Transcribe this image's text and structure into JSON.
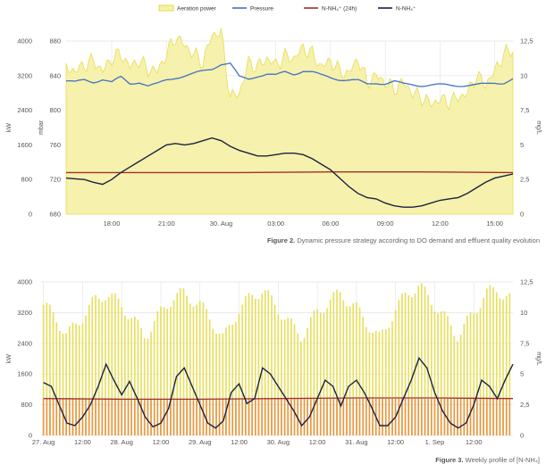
{
  "colors": {
    "aeration": "#e6dc4a",
    "aeration_fill": "#f6f1a8",
    "pressure": "#3f72c6",
    "nnh4_24h": "#a0312a",
    "nnh4": "#1a2340",
    "bar_orange": "#e88a3e",
    "grid": "#e3e3e3"
  },
  "legend": [
    {
      "key": "aeration",
      "label": "Aeration power",
      "icon": "filled-box"
    },
    {
      "key": "pressure",
      "label": "Pressure",
      "icon": "line"
    },
    {
      "key": "nnh4_24h",
      "label": "N-NH₄⁺ (24h)",
      "icon": "line"
    },
    {
      "key": "nnh4",
      "label": "N-NH₄⁺",
      "icon": "line"
    }
  ],
  "captions": {
    "fig2_bold": "Figure 2.",
    "fig2_text": " Dynamic pressure strategy according to DO demand and effluent quality evolution",
    "fig3_bold": "Figure 3.",
    "fig3_text": " Weekly profile of [N-NH₄]"
  },
  "chart_data": [
    {
      "type": "line",
      "title": "",
      "x_ticks": [
        "18:00",
        "21:00",
        "30. Aug",
        "03:00",
        "06:00",
        "09:00",
        "12:00",
        "15:00"
      ],
      "x_tick_hours": [
        18,
        21,
        24,
        27,
        30,
        33,
        36,
        39
      ],
      "x_range_hours": [
        15.5,
        40.0
      ],
      "axes": {
        "kw": {
          "label": "kW",
          "ticks": [
            0,
            800,
            1600,
            2400,
            3200,
            4000
          ],
          "range": [
            0,
            4000
          ]
        },
        "mbar": {
          "label": "mbar",
          "ticks": [
            680,
            720,
            760,
            800,
            840,
            880
          ],
          "range": [
            680,
            880
          ]
        },
        "mgl": {
          "label": "mg/L",
          "ticks": [
            0,
            2.5,
            5,
            7.5,
            10,
            12.5
          ],
          "range": [
            0,
            12.5
          ]
        }
      },
      "grid": true,
      "legend_position": "top",
      "series": [
        {
          "name": "Aeration power",
          "axis": "kw",
          "style": "area",
          "x": [
            15.5,
            16,
            16.5,
            17,
            17.5,
            18,
            18.5,
            19,
            19.5,
            20,
            20.5,
            21,
            21.5,
            22,
            22.5,
            23,
            23.5,
            24,
            24.5,
            25,
            25.5,
            26,
            26.5,
            27,
            27.5,
            28,
            28.5,
            29,
            29.5,
            30,
            30.5,
            31,
            31.5,
            32,
            32.5,
            33,
            33.5,
            34,
            34.5,
            35,
            35.5,
            36,
            36.5,
            37,
            37.5,
            38,
            38.5,
            39,
            39.5,
            40
          ],
          "values": [
            3400,
            3300,
            3450,
            3550,
            3300,
            3600,
            3700,
            3400,
            3550,
            3350,
            3300,
            3700,
            4100,
            3900,
            3700,
            3500,
            4150,
            4200,
            2700,
            2800,
            3500,
            3400,
            3600,
            3450,
            3650,
            3600,
            3850,
            3700,
            3400,
            3550,
            3300,
            3250,
            3600,
            3050,
            3200,
            3050,
            2900,
            3050,
            2800,
            2700,
            2550,
            2650,
            2600,
            2700,
            2800,
            3200,
            3000,
            3300,
            3700,
            3800
          ]
        },
        {
          "name": "Pressure",
          "axis": "mbar",
          "style": "line",
          "x": [
            15.5,
            16,
            16.5,
            17,
            17.5,
            18,
            18.5,
            19,
            19.5,
            20,
            20.5,
            21,
            21.5,
            22,
            22.5,
            23,
            23.5,
            24,
            24.5,
            25,
            25.5,
            26,
            26.5,
            27,
            27.5,
            28,
            28.5,
            29,
            29.5,
            30,
            30.5,
            31,
            31.5,
            32,
            32.5,
            33,
            33.5,
            34,
            34.5,
            35,
            35.5,
            36,
            36.5,
            37,
            37.5,
            38,
            38.5,
            39,
            39.5,
            40
          ],
          "values": [
            834,
            832,
            835,
            833,
            836,
            832,
            838,
            831,
            833,
            828,
            830,
            835,
            838,
            840,
            842,
            845,
            848,
            854,
            854,
            838,
            836,
            840,
            842,
            840,
            844,
            842,
            846,
            844,
            840,
            838,
            836,
            835,
            834,
            830,
            832,
            831,
            833,
            830,
            830,
            829,
            829,
            829,
            829,
            829,
            829,
            829,
            830,
            832,
            832,
            836
          ]
        },
        {
          "name": "N-NH₄⁺ (24h)",
          "axis": "mgl",
          "style": "line",
          "x": [
            15.5,
            20,
            25,
            30,
            35,
            40
          ],
          "values": [
            3.0,
            3.0,
            3.0,
            3.05,
            3.05,
            3.0
          ]
        },
        {
          "name": "N-NH₄⁺",
          "axis": "mgl",
          "style": "line",
          "x": [
            15.5,
            16,
            16.5,
            17,
            17.5,
            18,
            18.5,
            19,
            19.5,
            20,
            20.5,
            21,
            21.5,
            22,
            22.5,
            23,
            23.5,
            24,
            24.5,
            25,
            25.5,
            26,
            26.5,
            27,
            27.5,
            28,
            28.5,
            29,
            29.5,
            30,
            30.5,
            31,
            31.5,
            32,
            32.5,
            33,
            33.5,
            34,
            34.5,
            35,
            35.5,
            36,
            36.5,
            37,
            37.5,
            38,
            38.5,
            39,
            39.5,
            40
          ],
          "values": [
            2.6,
            2.55,
            2.5,
            2.3,
            2.15,
            2.5,
            3.0,
            3.4,
            3.8,
            4.2,
            4.6,
            5.0,
            5.1,
            5.0,
            5.1,
            5.3,
            5.5,
            5.3,
            4.9,
            4.6,
            4.4,
            4.2,
            4.2,
            4.3,
            4.4,
            4.4,
            4.3,
            4.0,
            3.6,
            3.2,
            2.6,
            2.0,
            1.5,
            1.2,
            1.1,
            0.8,
            0.6,
            0.5,
            0.5,
            0.6,
            0.8,
            1.0,
            1.1,
            1.2,
            1.5,
            1.9,
            2.3,
            2.6,
            2.75,
            2.9
          ]
        }
      ]
    },
    {
      "type": "bar",
      "title": "",
      "x_ticks": [
        "27. Aug",
        "12:00",
        "28. Aug",
        "12:00",
        "29. Aug",
        "12:00",
        "30. Aug",
        "12:00",
        "31. Aug",
        "12:00",
        "1. Sep",
        "12:00"
      ],
      "x_tick_days": [
        0,
        0.5,
        1,
        1.5,
        2,
        2.5,
        3,
        3.5,
        4,
        4.5,
        5,
        5.5
      ],
      "x_range_days": [
        -0.03,
        6.0
      ],
      "axes": {
        "kw": {
          "label": "kW",
          "ticks": [
            0,
            800,
            1600,
            2400,
            3200,
            4000
          ],
          "range": [
            0,
            4000
          ]
        },
        "mgl": {
          "label": "mg/L",
          "ticks": [
            0,
            2.5,
            5,
            7.5,
            10,
            12.5
          ],
          "range": [
            0,
            12.5
          ]
        }
      },
      "grid": true,
      "series": [
        {
          "name": "Aeration power",
          "axis": "kw",
          "style": "bars",
          "hourly_kw_envelope": {
            "days": [
              0,
              0.15,
              0.3,
              0.5,
              0.65,
              0.8,
              1.0,
              1.15,
              1.3,
              1.5,
              1.65,
              1.8,
              2.0,
              2.15,
              2.3,
              2.5,
              2.65,
              2.8,
              3.0,
              3.15,
              3.3,
              3.5,
              3.65,
              3.8,
              4.0,
              4.15,
              4.3,
              4.5,
              4.65,
              4.8,
              5.0,
              5.15,
              5.3,
              5.5,
              5.65,
              5.8,
              6.0
            ],
            "kw": [
              3400,
              3100,
              2600,
              3100,
              3500,
              3700,
              3400,
              3000,
              2600,
              3200,
              3600,
              3700,
              3400,
              3000,
              2500,
              3300,
              3600,
              3800,
              3300,
              2900,
              2600,
              3200,
              3500,
              3700,
              3300,
              2900,
              2500,
              3300,
              3700,
              3900,
              3400,
              3000,
              2600,
              3200,
              3700,
              3800,
              3500
            ]
          }
        },
        {
          "name": "Aeration power (base)",
          "axis": "kw",
          "style": "bars",
          "constant_kw": 950
        },
        {
          "name": "N-NH₄⁺ (24h)",
          "axis": "mgl",
          "style": "line",
          "x": [
            0,
            1,
            2,
            3,
            4,
            5,
            6
          ],
          "values": [
            3.0,
            2.95,
            2.95,
            3.0,
            3.05,
            3.05,
            3.0
          ]
        },
        {
          "name": "N-NH₄⁺",
          "axis": "mgl",
          "style": "line",
          "x": [
            0,
            0.1,
            0.2,
            0.3,
            0.4,
            0.5,
            0.6,
            0.7,
            0.8,
            0.9,
            1.0,
            1.1,
            1.2,
            1.3,
            1.4,
            1.5,
            1.6,
            1.7,
            1.8,
            1.9,
            2.0,
            2.1,
            2.2,
            2.3,
            2.4,
            2.5,
            2.6,
            2.7,
            2.8,
            2.9,
            3.0,
            3.1,
            3.2,
            3.3,
            3.4,
            3.5,
            3.6,
            3.7,
            3.8,
            3.9,
            4.0,
            4.1,
            4.2,
            4.3,
            4.4,
            4.5,
            4.6,
            4.7,
            4.8,
            4.9,
            5.0,
            5.1,
            5.2,
            5.3,
            5.4,
            5.5,
            5.6,
            5.7,
            5.8,
            5.9,
            6.0
          ],
          "values": [
            4.3,
            4.0,
            2.5,
            1.0,
            0.8,
            1.5,
            2.5,
            4.0,
            5.8,
            4.5,
            3.3,
            4.4,
            3.0,
            1.5,
            0.7,
            1.0,
            2.2,
            4.8,
            5.5,
            4.0,
            2.5,
            1.0,
            0.6,
            1.2,
            3.5,
            4.2,
            2.6,
            3.0,
            5.5,
            5.0,
            4.0,
            3.0,
            2.0,
            0.8,
            1.5,
            3.0,
            4.5,
            4.0,
            2.4,
            4.0,
            4.5,
            3.5,
            2.2,
            0.8,
            0.8,
            1.5,
            3.0,
            4.5,
            6.3,
            5.5,
            3.5,
            2.0,
            1.0,
            0.6,
            1.0,
            2.5,
            4.5,
            4.0,
            3.0,
            4.5,
            5.8
          ]
        }
      ]
    }
  ]
}
